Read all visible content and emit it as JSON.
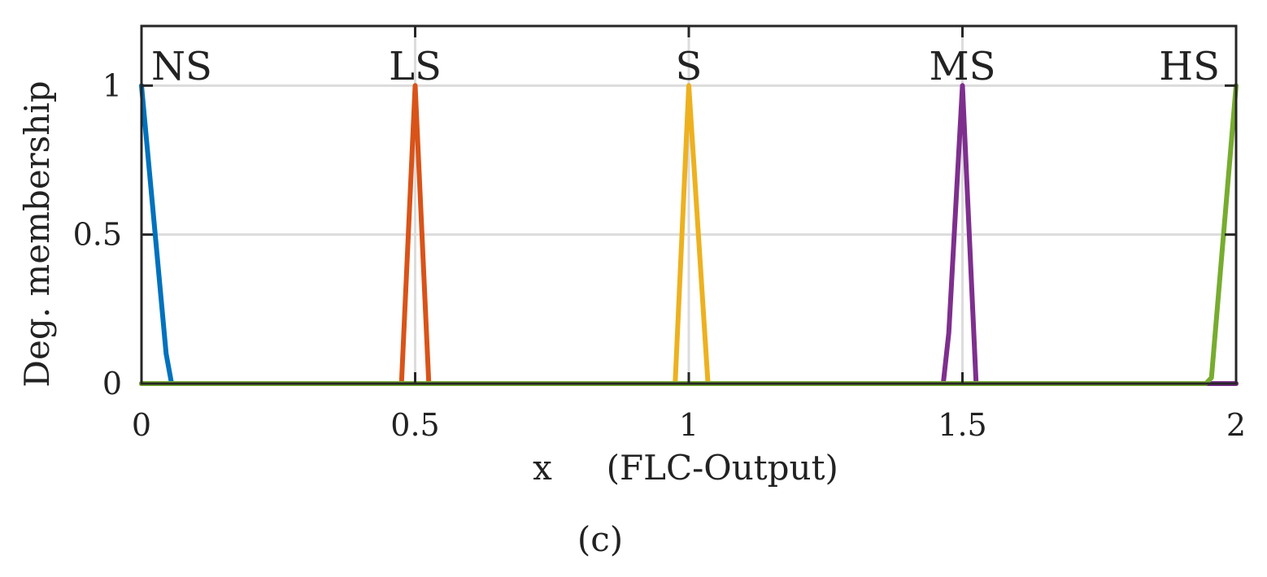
{
  "chart_data": {
    "type": "line",
    "title": "",
    "xlabel": "x     (FLC-Output)",
    "ylabel": "Deg. membership",
    "caption": "(c)",
    "xlim": [
      0,
      2
    ],
    "ylim": [
      0,
      1.2
    ],
    "x_ticks": [
      0,
      0.5,
      1,
      1.5,
      2
    ],
    "x_tick_labels": [
      "0",
      "0.5",
      "1",
      "1.5",
      "2"
    ],
    "y_ticks": [
      0,
      0.5,
      1
    ],
    "y_tick_labels": [
      "0",
      "0.5",
      "1"
    ],
    "grid": true,
    "series": [
      {
        "name": "NS",
        "color": "#0072BD",
        "x": [
          0,
          0.02,
          0.045,
          0.055,
          2
        ],
        "y": [
          1,
          0.6,
          0.1,
          0,
          0
        ]
      },
      {
        "name": "LS",
        "color": "#D95319",
        "x": [
          0,
          0.475,
          0.5,
          0.525,
          2
        ],
        "y": [
          0,
          0,
          1,
          0,
          0
        ]
      },
      {
        "name": "S",
        "color": "#EDB120",
        "x": [
          0,
          0.975,
          1,
          1.035,
          2
        ],
        "y": [
          0,
          0,
          1,
          0,
          0
        ]
      },
      {
        "name": "MS",
        "color": "#7E2F8E",
        "x": [
          0,
          1.465,
          1.475,
          1.5,
          1.525,
          2
        ],
        "y": [
          0,
          0,
          0.17,
          1,
          0,
          0
        ]
      },
      {
        "name": "HS",
        "color": "#77AC30",
        "x": [
          0,
          1.945,
          1.955,
          2
        ],
        "y": [
          0,
          0,
          0.02,
          1
        ]
      }
    ]
  }
}
